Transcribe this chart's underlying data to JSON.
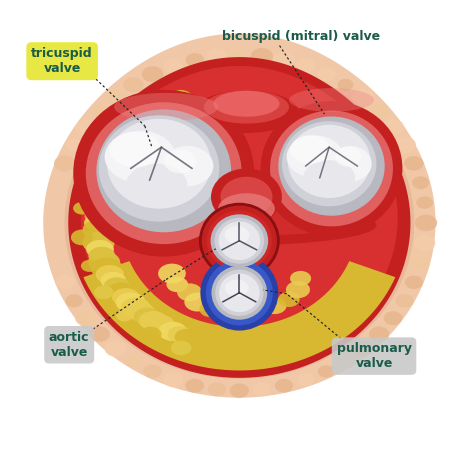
{
  "bg_color": "#ffffff",
  "labels": {
    "tricuspid": "tricuspid\nvalve",
    "bicuspid": "bicuspid (mitral) valve",
    "aortic": "aortic\nvalve",
    "pulmonary": "pulmonary\nvalve"
  },
  "label_colors": {
    "tricuspid_bg": "#e8e844",
    "tricuspid_fg": "#1a5c4a",
    "bicuspid_fg": "#1a5c4a",
    "aortic_bg": "#c8c8c8",
    "aortic_fg": "#1a5c4a",
    "pulmonary_bg": "#c8c8c8",
    "pulmonary_fg": "#1a5c4a"
  },
  "colors": {
    "outer_peach": "#f0c8a8",
    "outer_peach2": "#e8b898",
    "red_dark": "#c42020",
    "red_mid": "#d83030",
    "red_light": "#e85050",
    "red_inner": "#e87878",
    "leaflet_base": "#b8b8c0",
    "leaflet_mid": "#d0d0d8",
    "leaflet_light": "#e8e8ec",
    "leaflet_shine": "#f4f4f6",
    "leaflet_white": "#fafafa",
    "fat_dark": "#c8a820",
    "fat_mid": "#d8b830",
    "fat_light": "#e8cc50",
    "fat_bright": "#f0d860",
    "aortic_ring": "#c03030",
    "pulmonary_blue_dark": "#2840a8",
    "pulmonary_blue": "#3858c8",
    "line_color": "#222222"
  },
  "figure_size": [
    4.74,
    4.74
  ],
  "dpi": 100
}
